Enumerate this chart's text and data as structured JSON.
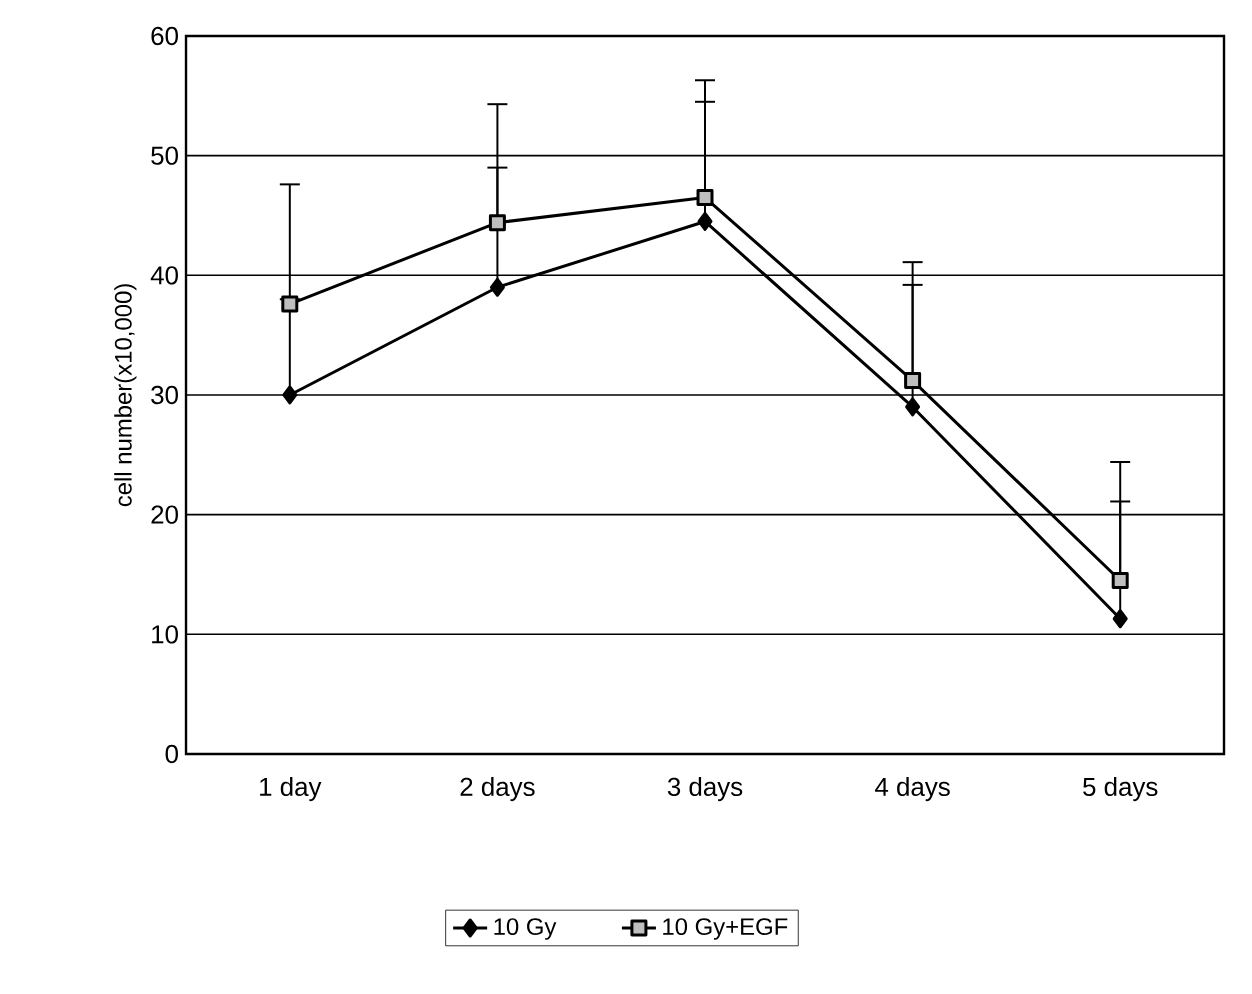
{
  "chart_data": {
    "type": "line",
    "ylabel": "cell number(x10,000)",
    "categories": [
      "1 day",
      "2 days",
      "3 days",
      "4 days",
      "5 days"
    ],
    "series": [
      {
        "name": "10 Gy",
        "color": "#000000",
        "marker": "diamond",
        "values": [
          30,
          39,
          44.5,
          29,
          11.3
        ],
        "errors": [
          [
            30,
            38
          ],
          [
            39,
            49
          ],
          [
            44.5,
            54.5
          ],
          [
            29,
            39.2
          ],
          [
            11.3,
            21.1
          ]
        ]
      },
      {
        "name": "10 Gy+EGF",
        "color": "#000000",
        "marker": "square",
        "values": [
          37.6,
          44.4,
          46.5,
          31.2,
          14.5
        ],
        "errors": [
          [
            37.6,
            47.6
          ],
          [
            44.4,
            54.3
          ],
          [
            46.5,
            56.3
          ],
          [
            31.2,
            41.1
          ],
          [
            14.5,
            24.4
          ]
        ]
      }
    ],
    "ylim": [
      0,
      60
    ],
    "yticks": [
      0,
      10,
      20,
      30,
      40,
      50,
      60
    ],
    "grid": "y",
    "legend": "bottom",
    "line_style": "solid"
  }
}
